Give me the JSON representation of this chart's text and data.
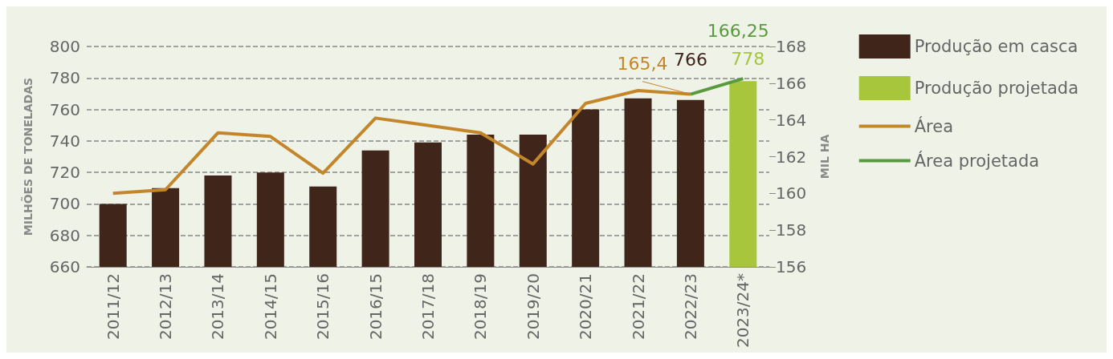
{
  "chart_data": {
    "type": "bar",
    "ylabel": "MILHÕES DE TONELADAS",
    "y2label": "MIL HA",
    "categories": [
      "2011/12",
      "2012/13",
      "2013/14",
      "2014/15",
      "2015/16",
      "2016/15",
      "2017/18",
      "2018/19",
      "2019/20",
      "2020/21",
      "2021/22",
      "2022/23",
      "2023/24*"
    ],
    "series": [
      {
        "name": "Produção em casca",
        "color": "#40251a",
        "values": [
          700,
          710,
          718,
          720,
          711,
          734,
          739,
          744,
          744,
          760,
          767,
          766,
          null
        ],
        "value_labels": [
          null,
          null,
          null,
          null,
          null,
          null,
          null,
          null,
          null,
          null,
          null,
          "766",
          null
        ]
      },
      {
        "name": "Produção projetada",
        "color": "#a7c63c",
        "values": [
          null,
          null,
          null,
          null,
          null,
          null,
          null,
          null,
          null,
          null,
          null,
          null,
          778
        ],
        "value_labels": [
          null,
          null,
          null,
          null,
          null,
          null,
          null,
          null,
          null,
          null,
          null,
          null,
          "778"
        ]
      },
      {
        "name": "Área",
        "type": "line",
        "axis": "y2",
        "color": "#c4862a",
        "values": [
          160.0,
          160.2,
          163.3,
          163.1,
          161.1,
          164.1,
          163.7,
          163.3,
          161.6,
          164.9,
          165.6,
          165.4,
          null
        ],
        "value_labels": [
          null,
          null,
          null,
          null,
          null,
          null,
          null,
          null,
          null,
          null,
          null,
          "165,4",
          null
        ]
      },
      {
        "name": "Área projetada",
        "type": "line",
        "axis": "y2",
        "color": "#5a9a3e",
        "values": [
          null,
          null,
          null,
          null,
          null,
          null,
          null,
          null,
          null,
          null,
          null,
          165.4,
          166.25
        ],
        "value_labels": [
          null,
          null,
          null,
          null,
          null,
          null,
          null,
          null,
          null,
          null,
          null,
          null,
          "166,25"
        ]
      }
    ],
    "ylim": [
      660,
      800
    ],
    "yticks": [
      660,
      680,
      700,
      720,
      740,
      760,
      780,
      800
    ],
    "y2lim": [
      156,
      168
    ],
    "y2ticks": [
      156,
      158,
      160,
      162,
      164,
      166,
      168
    ],
    "grid": "y",
    "legend": "right",
    "marker": "none"
  }
}
